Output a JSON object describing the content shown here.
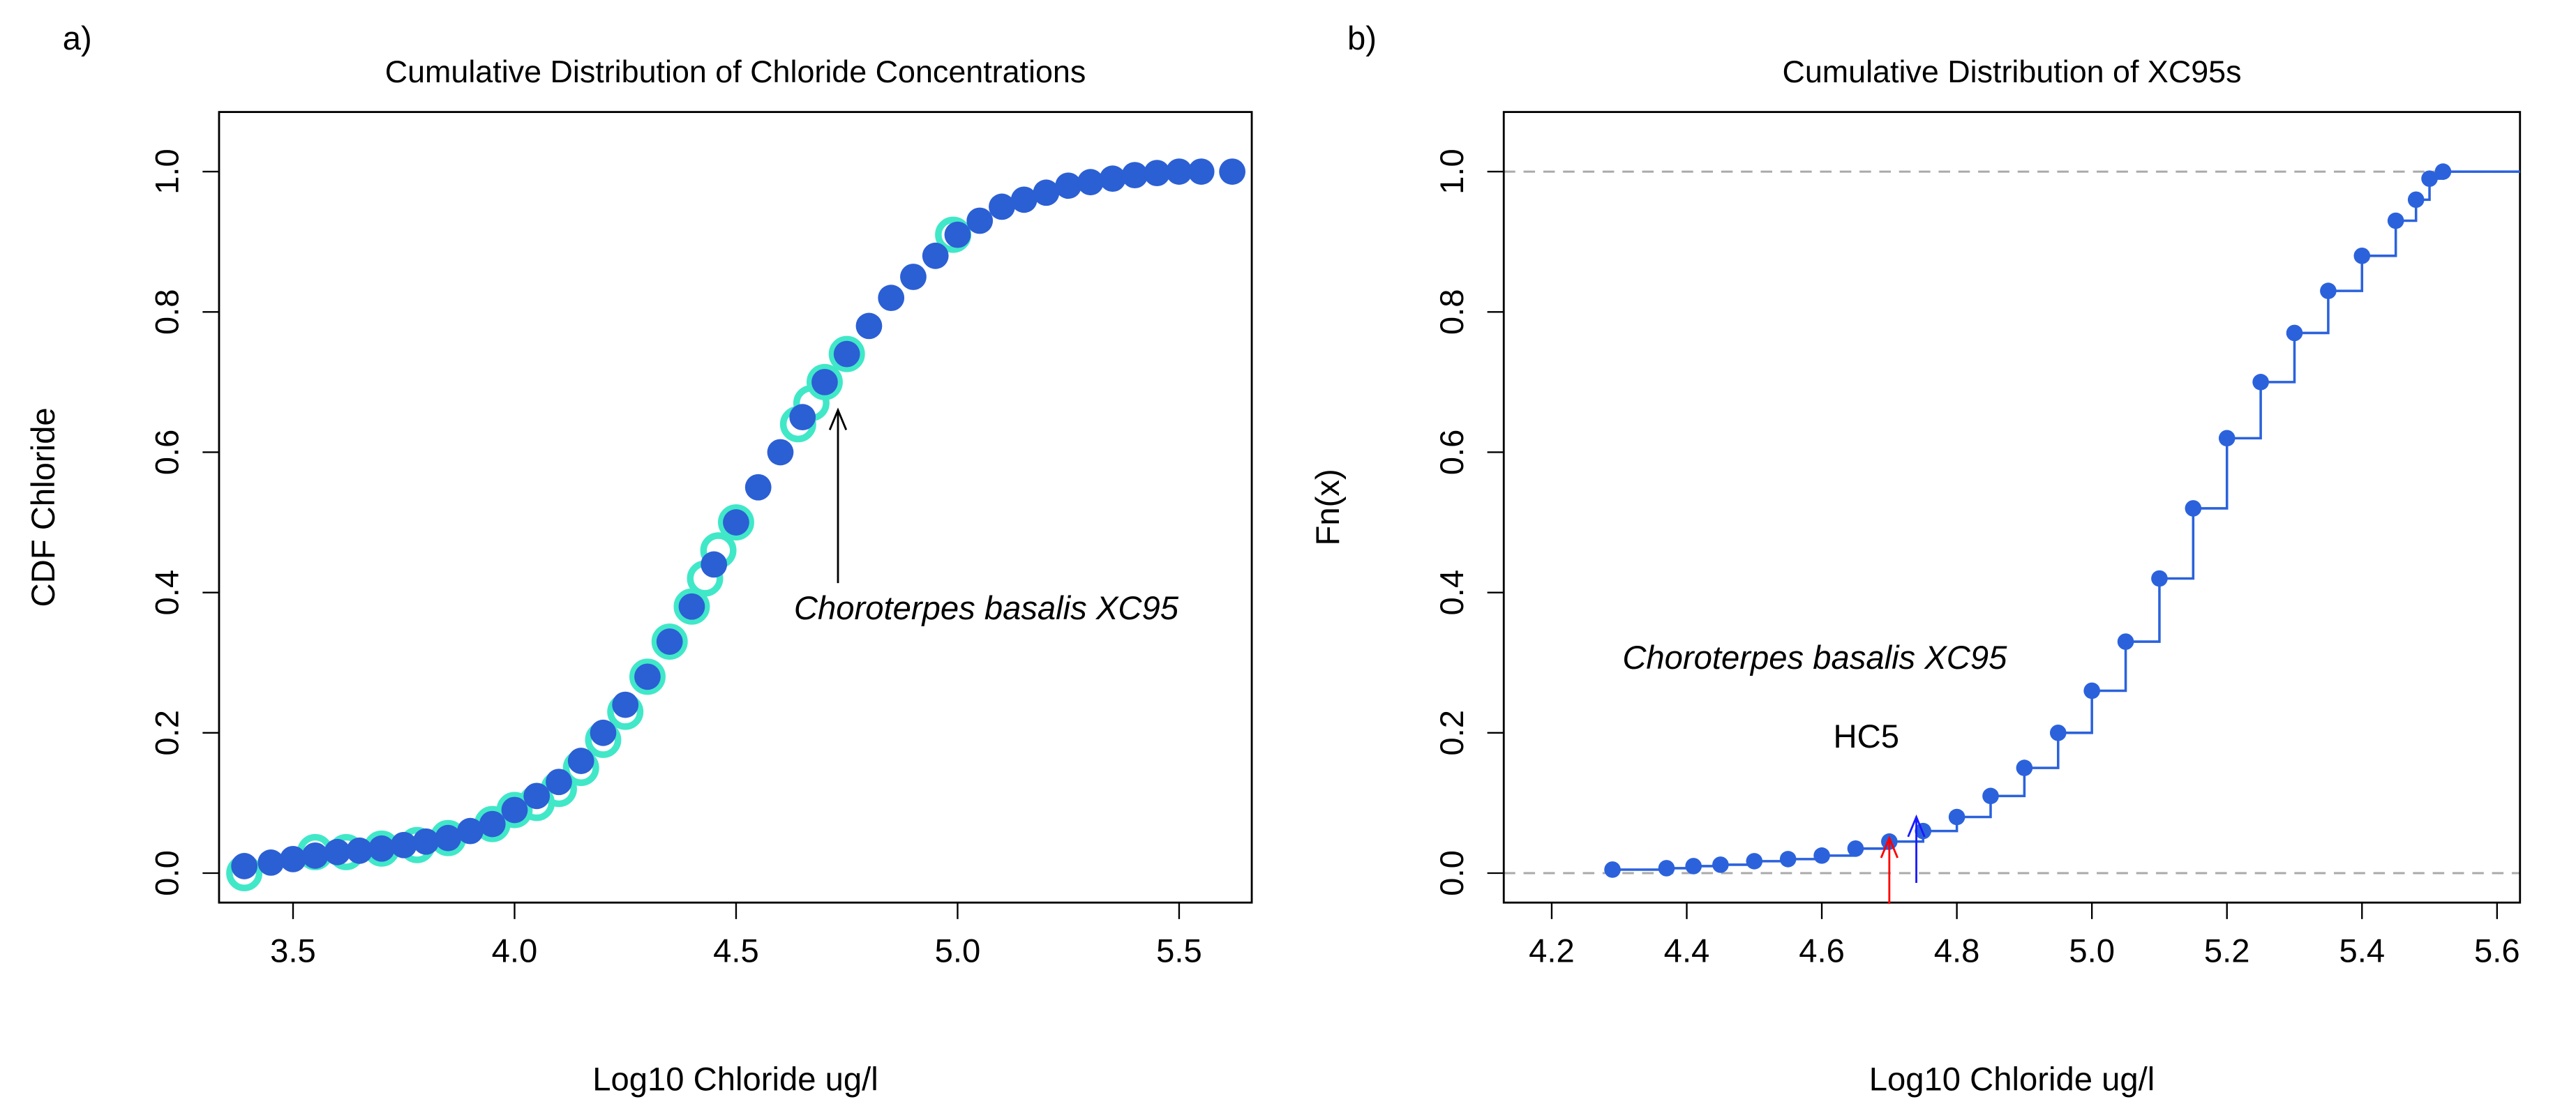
{
  "chart_data": [
    {
      "type": "scatter",
      "panel": "a)",
      "title": "Cumulative Distribution of Chloride Concentrations",
      "xlabel": "Log10 Chloride ug/l",
      "ylabel": "CDF Chloride",
      "xlim": [
        3.333,
        5.664
      ],
      "ylim": [
        -0.042,
        1.085
      ],
      "xticks": [
        3.5,
        {
          "value": 4,
          "label": "4.0"
        },
        4.5,
        {
          "value": 5,
          "label": "5.0"
        },
        5.5
      ],
      "yticks": [
        {
          "value": 0,
          "label": "0.0"
        },
        0.2,
        0.4,
        0.6,
        0.8,
        {
          "value": 1,
          "label": "1.0"
        }
      ],
      "series": [
        {
          "color": "#40e8c8",
          "size": 11,
          "x": [
            3.39,
            3.55,
            3.62,
            3.7,
            3.78,
            3.85,
            3.95,
            4.0,
            4.05,
            4.1,
            4.15,
            4.2,
            4.25,
            4.3,
            4.35,
            4.4,
            4.43,
            4.46,
            4.5,
            4.64,
            4.67,
            4.7,
            4.75,
            4.99
          ],
          "values": [
            0.0,
            0.03,
            0.03,
            0.035,
            0.04,
            0.05,
            0.07,
            0.09,
            0.1,
            0.12,
            0.15,
            0.19,
            0.23,
            0.28,
            0.33,
            0.38,
            0.42,
            0.46,
            0.5,
            0.64,
            0.67,
            0.7,
            0.74,
            0.91
          ]
        },
        {
          "color": "#2b5fd4",
          "size": 8,
          "x": [
            3.39,
            3.45,
            3.5,
            3.55,
            3.6,
            3.65,
            3.7,
            3.75,
            3.8,
            3.85,
            3.9,
            3.95,
            4.0,
            4.05,
            4.1,
            4.15,
            4.2,
            4.25,
            4.3,
            4.35,
            4.4,
            4.45,
            4.5,
            4.55,
            4.6,
            4.65,
            4.7,
            4.75,
            4.8,
            4.85,
            4.9,
            4.95,
            5.0,
            5.05,
            5.1,
            5.15,
            5.2,
            5.25,
            5.3,
            5.35,
            5.4,
            5.45,
            5.5,
            5.55,
            5.62
          ],
          "values": [
            0.01,
            0.015,
            0.02,
            0.025,
            0.03,
            0.032,
            0.035,
            0.04,
            0.045,
            0.05,
            0.06,
            0.07,
            0.09,
            0.11,
            0.13,
            0.16,
            0.2,
            0.24,
            0.28,
            0.33,
            0.38,
            0.44,
            0.5,
            0.55,
            0.6,
            0.65,
            0.7,
            0.74,
            0.78,
            0.82,
            0.85,
            0.88,
            0.91,
            0.93,
            0.95,
            0.96,
            0.97,
            0.98,
            0.985,
            0.99,
            0.995,
            0.998,
            1.0,
            1.0,
            1.0
          ]
        }
      ],
      "annotations": [
        {
          "text": "Choroterpes basalis XC95",
          "color": "#000000",
          "x": 4.73,
          "y": 0.66
        }
      ]
    },
    {
      "type": "ecdf",
      "panel": "b)",
      "title": "Cumulative Distribution of XC95s",
      "xlabel": "Log10 Chloride ug/l",
      "ylabel": "Fn(x)",
      "xlim": [
        4.129,
        5.634
      ],
      "ylim": [
        -0.042,
        1.085
      ],
      "xticks": [
        4.2,
        4.4,
        4.6,
        4.8,
        {
          "value": 5,
          "label": "5.0"
        },
        5.2,
        5.4,
        5.6
      ],
      "yticks": [
        {
          "value": 0,
          "label": "0.0"
        },
        0.2,
        0.4,
        0.6,
        0.8,
        {
          "value": 1,
          "label": "1.0"
        }
      ],
      "hlines": [
        0,
        1
      ],
      "series": [
        {
          "color": "#2b62dc",
          "size": 5,
          "x": [
            4.29,
            4.37,
            4.41,
            4.45,
            4.5,
            4.55,
            4.6,
            4.65,
            4.7,
            4.75,
            4.8,
            4.85,
            4.9,
            4.95,
            5.0,
            5.05,
            5.1,
            5.15,
            5.2,
            5.25,
            5.3,
            5.35,
            5.4,
            5.45,
            5.48,
            5.5,
            5.52
          ],
          "values": [
            0.005,
            0.007,
            0.01,
            0.012,
            0.017,
            0.02,
            0.025,
            0.035,
            0.045,
            0.06,
            0.08,
            0.11,
            0.15,
            0.2,
            0.26,
            0.33,
            0.42,
            0.52,
            0.62,
            0.7,
            0.77,
            0.83,
            0.88,
            0.93,
            0.96,
            0.99,
            1.0
          ]
        }
      ],
      "annotations": [
        {
          "text": "HC5",
          "color": "#ff0000",
          "x": 4.7,
          "y": 0.05
        },
        {
          "text": "Choroterpes basalis XC95",
          "color": "#1a1aff",
          "x": 4.74,
          "y": 0.08
        }
      ]
    }
  ]
}
